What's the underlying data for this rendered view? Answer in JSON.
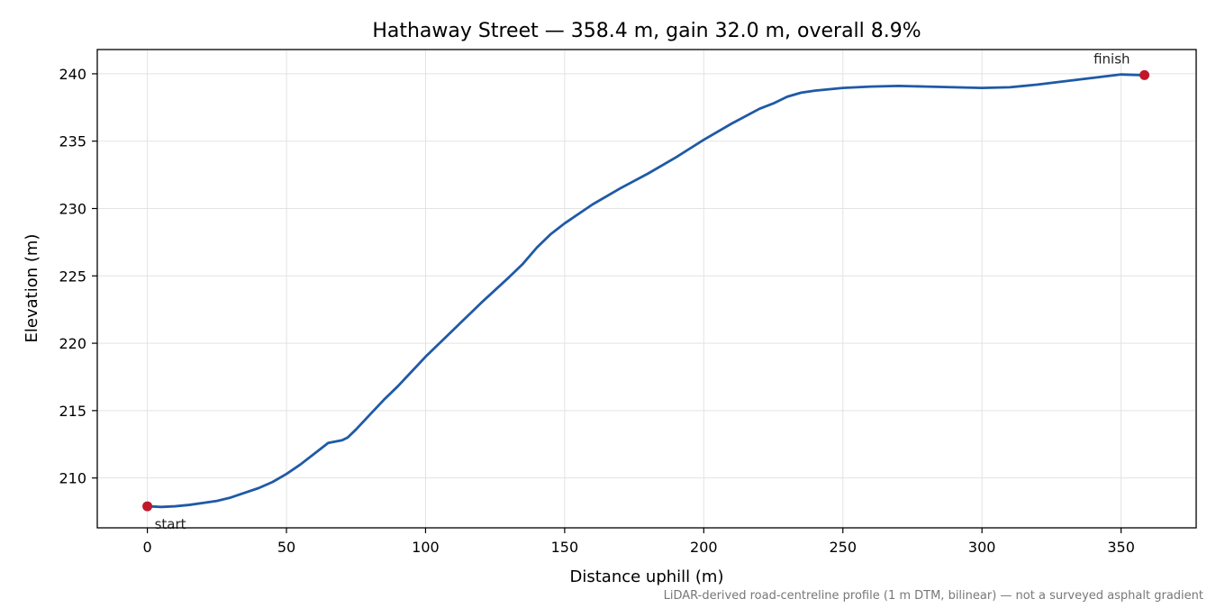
{
  "chart_data": {
    "type": "line",
    "title": "Hathaway Street — 358.4 m, gain 32.0 m, overall 8.9%",
    "xlabel": "Distance uphill (m)",
    "ylabel": "Elevation (m)",
    "xlim": [
      -18,
      377
    ],
    "ylim": [
      206.3,
      241.8
    ],
    "xticks": [
      0,
      50,
      100,
      150,
      200,
      250,
      300,
      350
    ],
    "yticks": [
      210,
      215,
      220,
      225,
      230,
      235,
      240
    ],
    "grid": true,
    "line_color": "#1f5aa6",
    "marker_color": "#c0182a",
    "series": [
      {
        "x": [
          0,
          5,
          10,
          15,
          20,
          25,
          30,
          35,
          40,
          45,
          50,
          55,
          60,
          65,
          70,
          72,
          75,
          80,
          85,
          90,
          95,
          100,
          110,
          120,
          130,
          135,
          140,
          145,
          150,
          160,
          170,
          180,
          190,
          200,
          210,
          220,
          225,
          230,
          235,
          240,
          250,
          260,
          270,
          280,
          290,
          300,
          310,
          320,
          330,
          340,
          350,
          358.4
        ],
        "y": [
          207.9,
          207.85,
          207.9,
          208.0,
          208.15,
          208.3,
          208.55,
          208.9,
          209.25,
          209.7,
          210.3,
          211.0,
          211.8,
          212.6,
          212.8,
          213.0,
          213.6,
          214.7,
          215.8,
          216.8,
          217.9,
          219.0,
          221.0,
          223.0,
          224.9,
          225.9,
          227.1,
          228.1,
          228.9,
          230.3,
          231.5,
          232.6,
          233.8,
          235.1,
          236.3,
          237.4,
          237.8,
          238.3,
          238.6,
          238.75,
          238.95,
          239.05,
          239.1,
          239.05,
          239.0,
          238.95,
          239.0,
          239.2,
          239.45,
          239.7,
          239.95,
          239.9
        ]
      }
    ],
    "annotations": [
      {
        "label": "start",
        "x": 0,
        "y": 207.9
      },
      {
        "label": "finish",
        "x": 358.4,
        "y": 239.9
      }
    ],
    "footnote": "LiDAR-derived road-centreline profile (1 m DTM, bilinear) — not a surveyed asphalt gradient"
  }
}
